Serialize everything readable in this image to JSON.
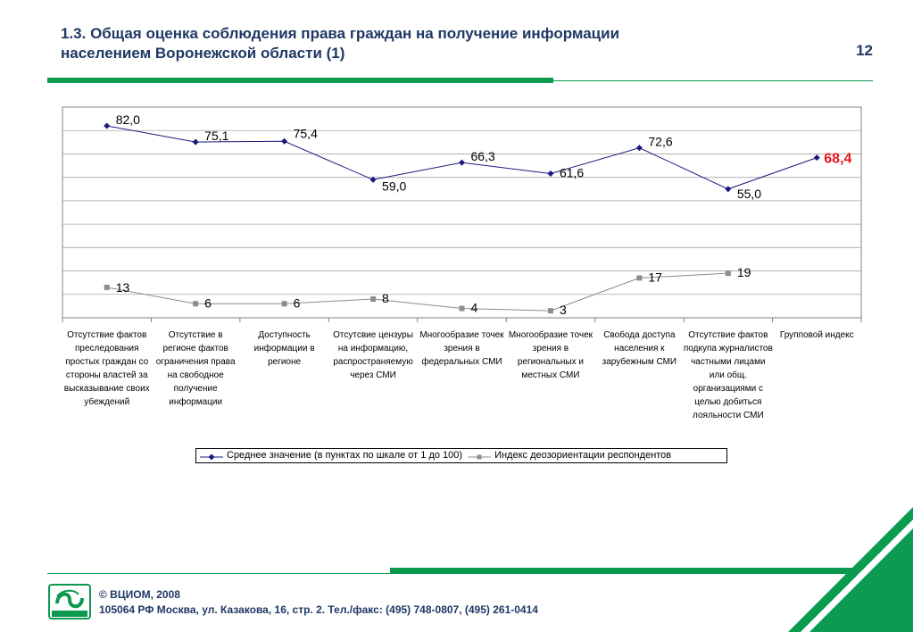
{
  "header": {
    "title_line1": "1.3. Общая оценка соблюдения права граждан на получение информации",
    "title_line2": "населением Воронежской области (1)",
    "page_number": "12"
  },
  "colors": {
    "accent_green": "#0c9a50",
    "title_blue": "#1f3864",
    "series1": "#1a1a7e",
    "series2": "#8c8c8c",
    "highlight_red": "#e8141b"
  },
  "chart_data": {
    "type": "line",
    "categories": [
      "Отсутствие фактов преследования простых граждан со стороны властей за высказывание своих убеждений",
      "Отсутствие в регионе фактов ограничения права на свободное получение информации",
      "Доступность информации в регионе",
      "Отсутсвие цензуры на информацию, распространяемую через СМИ",
      "Многообразие точек зрения в федеральных СМИ",
      "Многообразие точек зрения в региональных и местных СМИ",
      "Свобода доступа населения к зарубежным СМИ",
      "Отсутствие фактов подкупа журналистов частными лицами или общ. организациями с целью добиться лояльности СМИ",
      "Групповой индекс"
    ],
    "series": [
      {
        "name": "Среднее значение (в пунктах по шкале от 1 до 100)",
        "values": [
          82.0,
          75.1,
          75.4,
          59.0,
          66.3,
          61.6,
          72.6,
          55.0,
          68.4
        ],
        "labels": [
          "82,0",
          "75,1",
          "75,4",
          "59,0",
          "66,3",
          "61,6",
          "72,6",
          "55,0",
          "68,4"
        ]
      },
      {
        "name": "Индекс деозориентации респондентов",
        "values": [
          13,
          6,
          6,
          8,
          4,
          3,
          17,
          19,
          null
        ],
        "labels": [
          "13",
          "6",
          "6",
          "8",
          "4",
          "3",
          "17",
          "19",
          ""
        ]
      }
    ],
    "ylim": [
      0,
      90
    ],
    "grid": true,
    "legend_position": "bottom"
  },
  "footer": {
    "copyright": "© ВЦИОМ, 2008",
    "address": "105064 РФ Москва, ул. Казакова, 16, стр. 2.  Тел./факс: (495) 748-0807, (495) 261-0414"
  }
}
